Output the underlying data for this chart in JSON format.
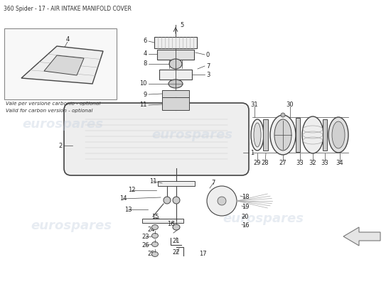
{
  "title": "360 Spider - 17 - AIR INTAKE MANIFOLD COVER",
  "title_fontsize": 5.5,
  "title_color": "#333333",
  "bg_color": "#ffffff",
  "watermark_text": "eurospares",
  "watermark_color": "#c5d0e0",
  "watermark_alpha": 0.4,
  "note_text_it": "Vale per versione carbonio - optional",
  "note_text_en": "Valid for carbon version - optional",
  "line_color": "#444444",
  "part_fill": "#eeeeee",
  "part_outline": "#444444",
  "label_fontsize": 6,
  "label_color": "#222222"
}
